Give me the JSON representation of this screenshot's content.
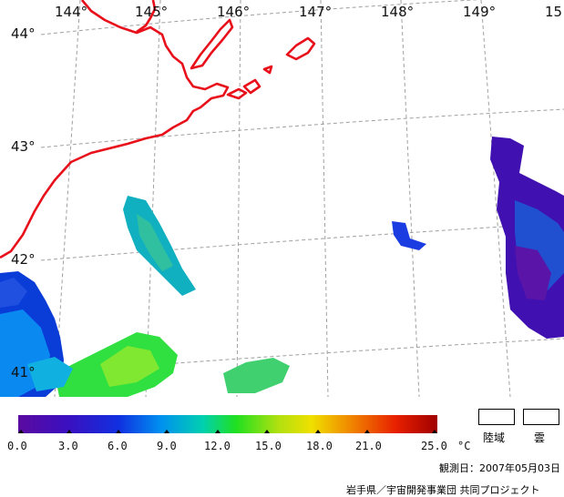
{
  "map": {
    "longitude_labels": [
      "144°",
      "145°",
      "146°",
      "147°",
      "148°",
      "149°",
      "15"
    ],
    "latitude_labels": [
      "44°",
      "43°",
      "42°",
      "41°"
    ],
    "colors": {
      "coastline": "#e8101a",
      "grid": "#a0a0a0",
      "background": "#ffffff"
    }
  },
  "colorbar": {
    "ticks": [
      "0.0",
      "3.0",
      "6.0",
      "9.0",
      "12.0",
      "15.0",
      "18.0",
      "21.0",
      "25.0"
    ],
    "unit": "°C",
    "range": [
      0,
      25
    ]
  },
  "legend": {
    "land_label": "陸域",
    "cloud_label": "雲"
  },
  "footer": {
    "observation_date": "観測日：2007年05月03日",
    "credit": "岩手県／宇宙開発事業団 共同プロジェクト"
  }
}
